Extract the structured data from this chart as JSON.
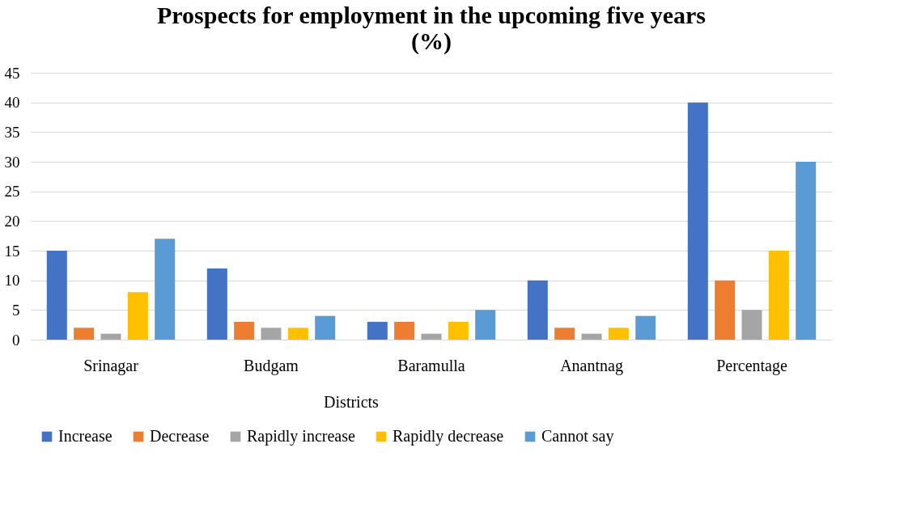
{
  "chart_data": {
    "type": "bar",
    "title": "Prospects for employment in the upcoming five years (%)",
    "xlabel": "Districts",
    "categories": [
      "Srinagar",
      "Budgam",
      "Baramulla",
      "Anantnag",
      "Percentage"
    ],
    "series": [
      {
        "name": "Increase",
        "color": "#4472c4",
        "values": [
          15,
          12,
          3,
          10,
          40
        ]
      },
      {
        "name": "Decrease",
        "color": "#ed7d31",
        "values": [
          2,
          3,
          3,
          2,
          10
        ]
      },
      {
        "name": "Rapidly increase",
        "color": "#a5a5a5",
        "values": [
          1,
          2,
          1,
          1,
          5
        ]
      },
      {
        "name": "Rapidly decrease",
        "color": "#ffc000",
        "values": [
          8,
          2,
          3,
          2,
          15
        ]
      },
      {
        "name": "Cannot say",
        "color": "#5b9bd5",
        "values": [
          17,
          4,
          5,
          4,
          30
        ]
      }
    ],
    "ylim": [
      0,
      45
    ],
    "yticks": [
      0,
      5,
      10,
      15,
      20,
      25,
      30,
      35,
      40,
      45
    ],
    "grid": "y",
    "legend": "bottom"
  }
}
